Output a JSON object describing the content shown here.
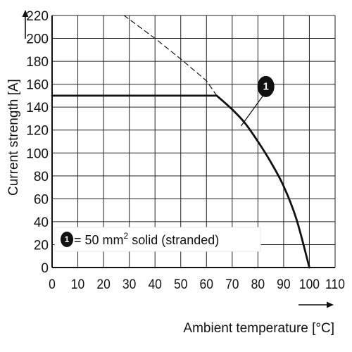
{
  "chart_data": {
    "type": "line",
    "xlabel": "Ambient temperature [°C]",
    "ylabel": "Current strength [A]",
    "xlim": [
      0,
      110
    ],
    "ylim": [
      0,
      220
    ],
    "x_ticks": [
      0,
      10,
      20,
      30,
      40,
      50,
      60,
      70,
      80,
      90,
      100,
      110
    ],
    "y_ticks": [
      0,
      20,
      40,
      60,
      80,
      100,
      120,
      140,
      160,
      180,
      200,
      220
    ],
    "grid": true,
    "series": [
      {
        "name": "1",
        "style": "solid",
        "color": "#111111",
        "x": [
          0,
          64,
          70,
          75,
          80,
          85,
          90,
          95,
          100
        ],
        "y": [
          150,
          150,
          138,
          126,
          110,
          92,
          71,
          42,
          0
        ]
      },
      {
        "style": "dashed",
        "color": "#111111",
        "x": [
          28,
          40,
          50,
          60,
          64
        ],
        "y": [
          220,
          200,
          182,
          163,
          150
        ]
      }
    ],
    "annotations": [
      {
        "label": "1",
        "x": 82,
        "y": 158,
        "target_x": 74,
        "target_y": 126
      }
    ],
    "legend": {
      "badge": "1",
      "text_prefix": "= 50 mm",
      "superscript": "2",
      "text_suffix": " solid (stranded)",
      "placement": "bottom-left"
    }
  }
}
